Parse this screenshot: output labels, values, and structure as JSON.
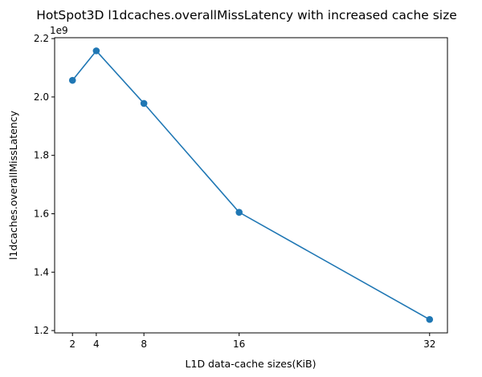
{
  "chart_data": {
    "type": "line",
    "title": "HotSpot3D l1dcaches.overallMissLatency with increased cache size",
    "xlabel": "L1D data-cache sizes(KiB)",
    "ylabel": "l1dcaches.overallMissLatency",
    "y_offset_label": "1e9",
    "x": [
      2,
      4,
      8,
      16,
      32
    ],
    "x_tick_labels": [
      "2",
      "4",
      "8",
      "16",
      "32"
    ],
    "y_ticks": [
      1.2,
      1.4,
      1.6,
      1.8,
      2.0,
      2.2
    ],
    "y_tick_labels": [
      "1.2",
      "1.4",
      "1.6",
      "1.8",
      "2.0",
      "2.2"
    ],
    "series": [
      {
        "values": [
          2.057,
          2.158,
          1.978,
          1.605,
          1.238
        ]
      }
    ],
    "xlim": [
      0.5,
      33.5
    ],
    "ylim": [
      1.192,
      2.203
    ],
    "grid": false,
    "line_color": "#1f77b4"
  }
}
